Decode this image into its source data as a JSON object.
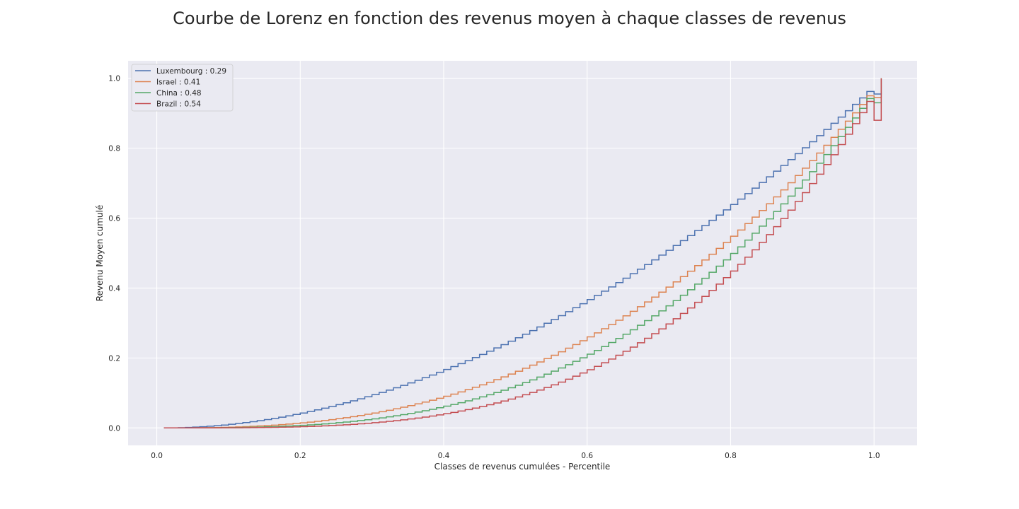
{
  "chart_data": {
    "type": "line",
    "title": "Courbe de Lorenz en fonction des revenus moyen à chaque classes de revenus",
    "xlabel": "Classes de revenus cumulées - Percentile",
    "ylabel": "Revenu Moyen cumulé",
    "xlim": [
      -0.04,
      1.06
    ],
    "ylim": [
      -0.05,
      1.05
    ],
    "x_ticks": [
      "0.0",
      "0.2",
      "0.4",
      "0.6",
      "0.8",
      "1.0"
    ],
    "y_ticks": [
      "0.0",
      "0.2",
      "0.4",
      "0.6",
      "0.8",
      "1.0"
    ],
    "grid": true,
    "legend_position": "top-left",
    "line_style": "steps-post",
    "x_range": [
      0.01,
      1.01
    ],
    "series": [
      {
        "name": "Luxembourg : 0.29",
        "color": "#4c72b0",
        "shape_exponent": 1.9,
        "final_step_y": 0.955
      },
      {
        "name": "Israel : 0.41",
        "color": "#dd8452",
        "shape_exponent": 2.55,
        "final_step_y": 0.945
      },
      {
        "name": "China : 0.48",
        "color": "#55a868",
        "shape_exponent": 2.95,
        "final_step_y": 0.93
      },
      {
        "name": "Brazil : 0.54",
        "color": "#c44e52",
        "shape_exponent": 3.4,
        "final_step_y": 0.88
      }
    ]
  }
}
